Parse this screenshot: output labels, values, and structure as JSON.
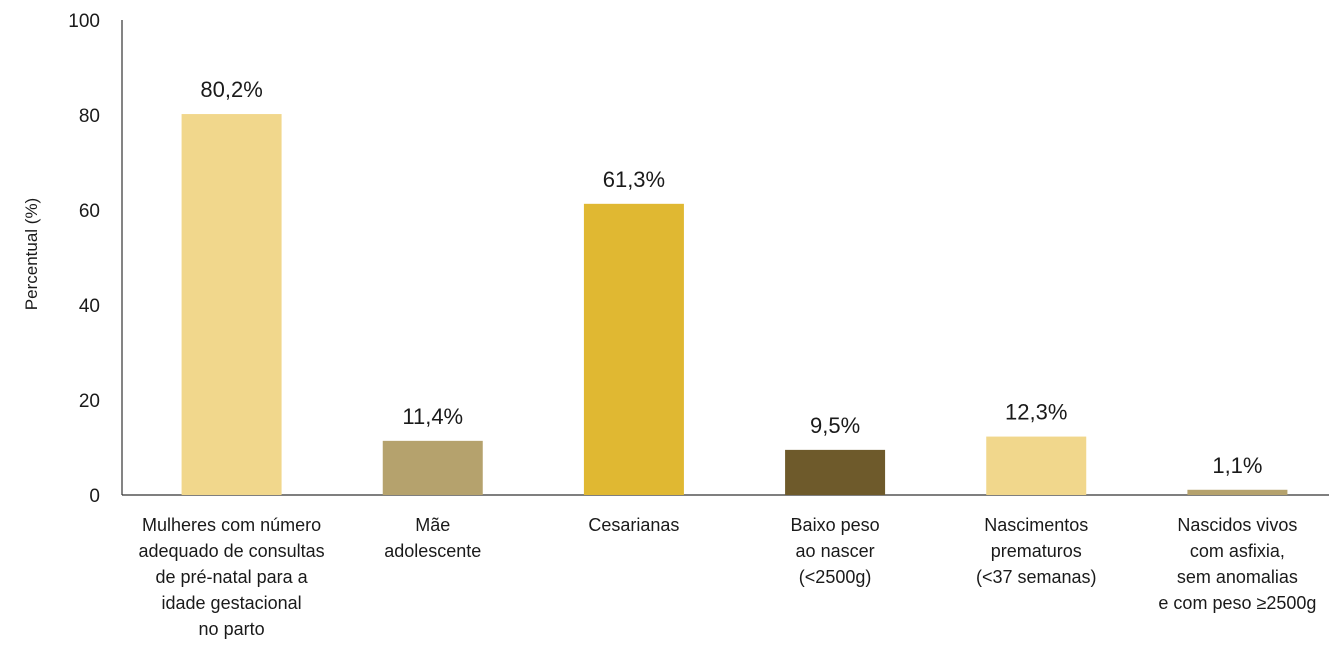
{
  "chart_data": {
    "type": "bar",
    "title": "",
    "ylabel": "Percentual (%)",
    "xlabel": "",
    "ylim": [
      0,
      100
    ],
    "yticks": [
      0,
      20,
      40,
      60,
      80,
      100
    ],
    "grid": false,
    "categories": [
      [
        "Mulheres com número",
        "adequado de consultas",
        "de pré-natal para a",
        "idade gestacional",
        "no parto"
      ],
      [
        "Mãe",
        "adolescente"
      ],
      [
        "Cesarianas"
      ],
      [
        "Baixo peso",
        "ao nascer",
        "(<2500g)"
      ],
      [
        "Nascimentos",
        "prematuros",
        "(<37 semanas)"
      ],
      [
        "Nascidos vivos",
        "com asfixia,",
        "sem anomalias",
        "e com peso ≥2500g"
      ]
    ],
    "values": [
      80.2,
      11.4,
      61.3,
      9.5,
      12.3,
      1.1
    ],
    "value_labels": [
      "80,2%",
      "11,4%",
      "61,3%",
      "9,5%",
      "12,3%",
      "1,1%"
    ],
    "colors": [
      "#f1d78c",
      "#b5a26d",
      "#e0b832",
      "#6e5a2b",
      "#f1d78c",
      "#b5a26d"
    ]
  }
}
